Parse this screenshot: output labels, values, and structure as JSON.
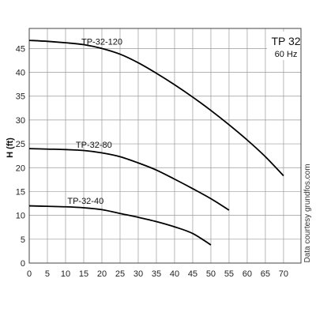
{
  "chart_data": {
    "type": "line",
    "title": "TP 32",
    "subtitle": "60 Hz",
    "xlabel": "",
    "ylabel": "H (ft)",
    "xlim": [
      0,
      70
    ],
    "ylim": [
      0,
      50
    ],
    "x_ticks": [
      0,
      5,
      10,
      15,
      20,
      25,
      30,
      35,
      40,
      45,
      50,
      55,
      60,
      65,
      70
    ],
    "y_ticks": [
      0,
      5,
      10,
      15,
      20,
      25,
      30,
      35,
      40,
      45
    ],
    "grid": true,
    "annotation": "Data courtesy grundfos.com",
    "series": [
      {
        "name": "TP-32-120",
        "x": [
          0,
          5,
          10,
          15,
          20,
          25,
          30,
          35,
          40,
          45,
          50,
          55,
          60,
          65,
          70
        ],
        "y": [
          46.7,
          46.5,
          46.2,
          45.8,
          45.0,
          43.8,
          42.0,
          39.8,
          37.4,
          34.8,
          32.0,
          29.0,
          25.8,
          22.3,
          18.3
        ]
      },
      {
        "name": "TP-32-80",
        "x": [
          0,
          5,
          10,
          15,
          20,
          25,
          30,
          35,
          40,
          45,
          50,
          55
        ],
        "y": [
          24.0,
          23.9,
          23.8,
          23.6,
          23.1,
          22.3,
          21.0,
          19.5,
          17.6,
          15.6,
          13.5,
          11.1
        ]
      },
      {
        "name": "TP-32-40",
        "x": [
          0,
          5,
          10,
          15,
          20,
          25,
          30,
          35,
          40,
          45,
          50
        ],
        "y": [
          12.0,
          11.9,
          11.8,
          11.6,
          11.2,
          10.4,
          9.6,
          8.7,
          7.6,
          6.2,
          3.8
        ]
      }
    ]
  }
}
